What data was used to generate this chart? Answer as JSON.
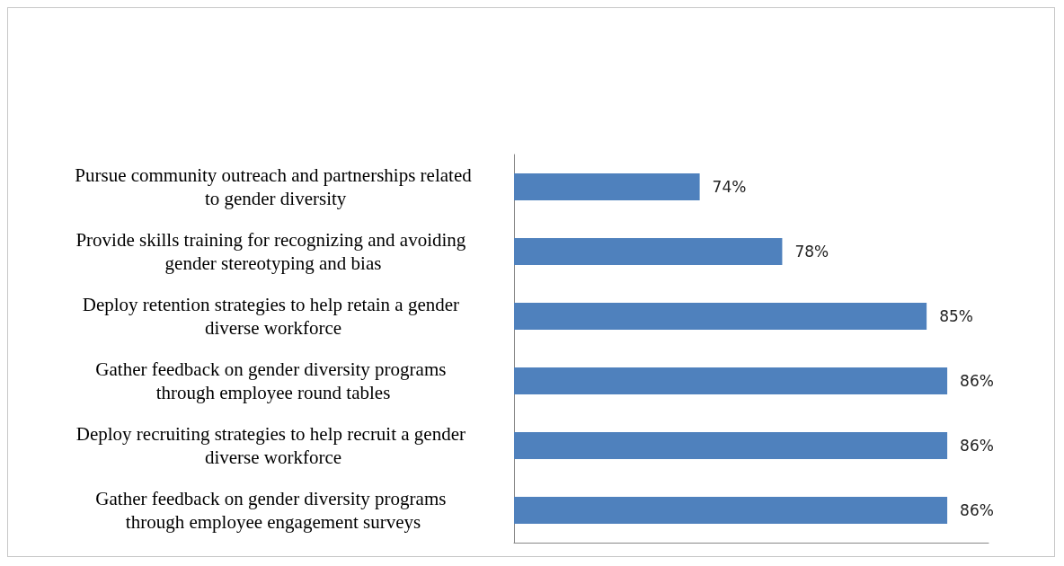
{
  "chart_data": {
    "type": "bar",
    "orientation": "horizontal",
    "categories": [
      "Pursue community outreach and partnerships related to gender diversity",
      "Provide skills training for recognizing and avoiding gender stereotyping and bias",
      "Deploy retention strategies to help retain a gender diverse workforce",
      "Gather feedback on gender diversity programs through employee round tables",
      "Deploy recruiting strategies to help recruit a gender diverse workforce",
      "Gather feedback on gender diversity programs through employee engagement surveys"
    ],
    "values": [
      74,
      78,
      85,
      86,
      86,
      86
    ],
    "value_labels": [
      "74%",
      "78%",
      "85%",
      "86%",
      "86%",
      "86%"
    ],
    "color": "#4f81bd",
    "xlim": [
      65,
      88
    ],
    "tick_labels": "y",
    "grid": false
  }
}
